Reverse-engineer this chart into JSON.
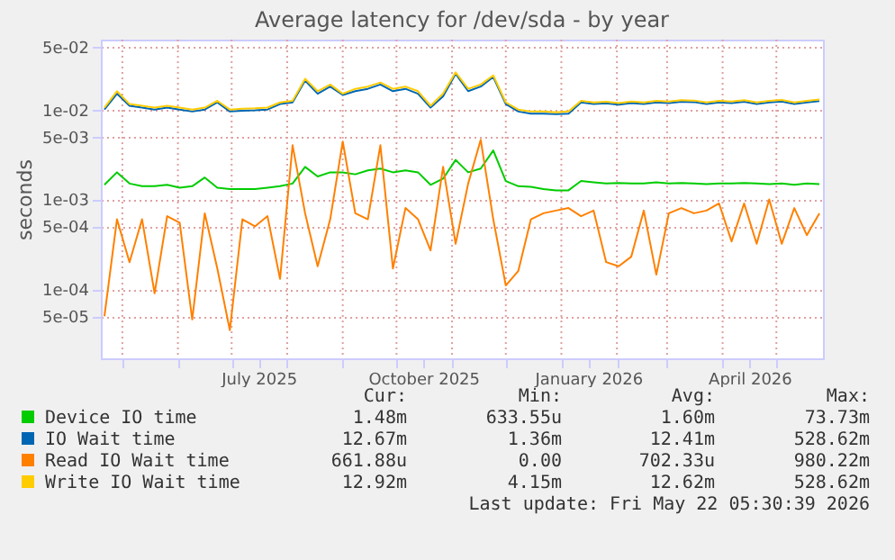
{
  "chart_data": {
    "type": "line",
    "title": "Average latency for /dev/sda - by year",
    "ylabel": "seconds",
    "log": "y",
    "grid": true,
    "legend": "bottom",
    "xlim": [
      "2025-04-19",
      "2026-05-27"
    ],
    "xticks": [
      {
        "value": "2025-05-01",
        "label": null
      },
      {
        "value": "2025-06-01",
        "label": null
      },
      {
        "value": "2025-07-01",
        "label": null
      },
      {
        "value": "2025-07-16",
        "label": "July 2025"
      },
      {
        "value": "2025-08-01",
        "label": null
      },
      {
        "value": "2025-09-01",
        "label": null
      },
      {
        "value": "2025-10-01",
        "label": null
      },
      {
        "value": "2025-10-16",
        "label": "October 2025"
      },
      {
        "value": "2025-11-01",
        "label": null
      },
      {
        "value": "2025-12-01",
        "label": null
      },
      {
        "value": "2026-01-01",
        "label": null
      },
      {
        "value": "2026-01-16",
        "label": "January 2026"
      },
      {
        "value": "2026-02-01",
        "label": null
      },
      {
        "value": "2026-03-01",
        "label": null
      },
      {
        "value": "2026-04-01",
        "label": null
      },
      {
        "value": "2026-04-16",
        "label": "April 2026"
      },
      {
        "value": "2026-05-01",
        "label": null
      }
    ],
    "ylim": [
      1.7e-05,
      0.06
    ],
    "yticks": [
      {
        "value": 5e-05,
        "label": "5e-05"
      },
      {
        "value": 0.0001,
        "label": "1e-04"
      },
      {
        "value": 0.0005,
        "label": "5e-04"
      },
      {
        "value": 0.001,
        "label": "1e-03"
      },
      {
        "value": 0.005,
        "label": "5e-03"
      },
      {
        "value": 0.01,
        "label": "1e-02"
      },
      {
        "value": 0.05,
        "label": "5e-02"
      }
    ],
    "x": [
      "2025-04-21",
      "2025-04-28",
      "2025-05-05",
      "2025-05-12",
      "2025-05-19",
      "2025-05-26",
      "2025-06-02",
      "2025-06-09",
      "2025-06-16",
      "2025-06-23",
      "2025-06-30",
      "2025-07-07",
      "2025-07-14",
      "2025-07-21",
      "2025-07-28",
      "2025-08-04",
      "2025-08-11",
      "2025-08-18",
      "2025-08-25",
      "2025-09-01",
      "2025-09-08",
      "2025-09-15",
      "2025-09-22",
      "2025-09-29",
      "2025-10-06",
      "2025-10-13",
      "2025-10-20",
      "2025-10-27",
      "2025-11-03",
      "2025-11-10",
      "2025-11-17",
      "2025-11-24",
      "2025-12-01",
      "2025-12-08",
      "2025-12-15",
      "2025-12-22",
      "2025-12-29",
      "2026-01-05",
      "2026-01-12",
      "2026-01-19",
      "2026-01-26",
      "2026-02-02",
      "2026-02-09",
      "2026-02-16",
      "2026-02-23",
      "2026-03-02",
      "2026-03-09",
      "2026-03-16",
      "2026-03-23",
      "2026-03-30",
      "2026-04-06",
      "2026-04-13",
      "2026-04-20",
      "2026-04-27",
      "2026-05-04",
      "2026-05-11",
      "2026-05-18",
      "2026-05-25"
    ],
    "series": [
      {
        "name": "Device IO time",
        "color": "#00cc00",
        "values": [
          0.00145,
          0.002,
          0.0015,
          0.0014,
          0.0014,
          0.00145,
          0.00135,
          0.0014,
          0.00175,
          0.00135,
          0.0013,
          0.0013,
          0.0013,
          0.00135,
          0.0014,
          0.0015,
          0.0023,
          0.0018,
          0.002,
          0.002,
          0.0019,
          0.0021,
          0.0022,
          0.002,
          0.0021,
          0.002,
          0.00145,
          0.0017,
          0.00275,
          0.002,
          0.0022,
          0.0035,
          0.0016,
          0.0014,
          0.00138,
          0.0013,
          0.00126,
          0.00126,
          0.0016,
          0.00155,
          0.0015,
          0.00152,
          0.0015,
          0.0015,
          0.00155,
          0.0015,
          0.00152,
          0.0015,
          0.00148,
          0.0015,
          0.0015,
          0.00152,
          0.0015,
          0.00148,
          0.0015,
          0.00145,
          0.0015,
          0.00148
        ]
      },
      {
        "name": "IO Wait time",
        "color": "#0066b3",
        "values": [
          0.01,
          0.015,
          0.011,
          0.0105,
          0.01,
          0.0105,
          0.01,
          0.0095,
          0.01,
          0.012,
          0.0095,
          0.0097,
          0.0098,
          0.01,
          0.0115,
          0.012,
          0.021,
          0.015,
          0.018,
          0.0145,
          0.016,
          0.017,
          0.019,
          0.016,
          0.017,
          0.015,
          0.0105,
          0.014,
          0.025,
          0.016,
          0.018,
          0.023,
          0.0115,
          0.0095,
          0.009,
          0.009,
          0.0089,
          0.009,
          0.012,
          0.0115,
          0.0117,
          0.0113,
          0.0118,
          0.0115,
          0.012,
          0.0118,
          0.0122,
          0.0121,
          0.0115,
          0.012,
          0.0118,
          0.0122,
          0.0115,
          0.012,
          0.0123,
          0.0115,
          0.012,
          0.0124
        ]
      },
      {
        "name": "Read IO Wait time",
        "color": "#ff8000",
        "values": [
          5e-05,
          0.0006,
          0.0002,
          0.0006,
          9e-05,
          0.00065,
          0.00055,
          4.6e-05,
          0.0007,
          0.00017,
          3.5e-05,
          0.0006,
          0.0005,
          0.00065,
          0.00013,
          0.004,
          0.0007,
          0.00018,
          0.0006,
          0.0044,
          0.0007,
          0.0006,
          0.004,
          0.00017,
          0.0008,
          0.0006,
          0.00027,
          0.0023,
          0.00032,
          0.0015,
          0.0046,
          0.0006,
          0.00011,
          0.00016,
          0.0006,
          0.0007,
          0.00075,
          0.0008,
          0.00065,
          0.00075,
          0.0002,
          0.00018,
          0.00023,
          0.00075,
          0.000145,
          0.0007,
          0.0008,
          0.0007,
          0.00075,
          0.0009,
          0.00034,
          0.0009,
          0.00032,
          0.001,
          0.00032,
          0.0008,
          0.0004,
          0.0007
        ]
      },
      {
        "name": "Write IO Wait time",
        "color": "#ffcc00",
        "values": [
          0.0105,
          0.016,
          0.0115,
          0.011,
          0.0105,
          0.011,
          0.0105,
          0.01,
          0.0105,
          0.0125,
          0.01,
          0.0102,
          0.0103,
          0.0105,
          0.012,
          0.0125,
          0.022,
          0.016,
          0.019,
          0.015,
          0.017,
          0.018,
          0.02,
          0.017,
          0.018,
          0.016,
          0.011,
          0.015,
          0.026,
          0.017,
          0.019,
          0.024,
          0.012,
          0.01,
          0.0095,
          0.0095,
          0.0093,
          0.0095,
          0.0125,
          0.012,
          0.0122,
          0.0118,
          0.0123,
          0.012,
          0.0125,
          0.0123,
          0.0127,
          0.0126,
          0.012,
          0.0125,
          0.0123,
          0.0127,
          0.012,
          0.0125,
          0.0128,
          0.012,
          0.0125,
          0.0129
        ]
      }
    ],
    "annotations": [
      "Cur:",
      "Min:",
      "Avg:",
      "Max:",
      "1.48m",
      "633.55u",
      "1.60m",
      "73.73m",
      "12.67m",
      "1.36m",
      "12.41m",
      "528.62m",
      "661.88u",
      "0.00",
      "702.33u",
      "980.22m",
      "12.92m",
      "4.15m",
      "12.62m",
      "528.62m",
      "Last update: Fri May 22 05:30:39 2026"
    ]
  }
}
